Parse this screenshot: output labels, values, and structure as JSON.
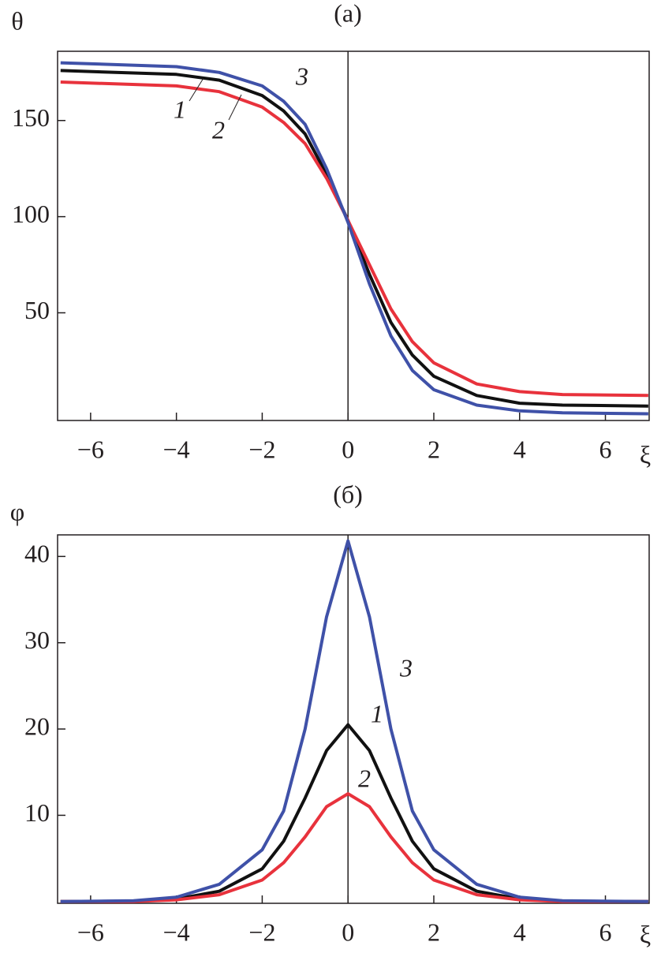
{
  "chart_data": [
    {
      "type": "line",
      "title": "(a)",
      "x_label": "ξ",
      "y_label": "θ",
      "x": [
        -6.7,
        -4,
        -3,
        -2,
        -1.5,
        -1,
        -0.5,
        0,
        0.5,
        1,
        1.5,
        2,
        3,
        4,
        5,
        7
      ],
      "series": [
        {
          "name": "1",
          "color": "#111111",
          "values": [
            176,
            174,
            171,
            163,
            155,
            143,
            122,
            98,
            70,
            45,
            28,
            17,
            7,
            3,
            2,
            1.5
          ]
        },
        {
          "name": "2",
          "color": "#e8323c",
          "values": [
            170,
            168,
            165,
            157,
            149,
            138,
            120,
            98,
            75,
            52,
            35,
            24,
            13,
            9,
            7.5,
            7
          ]
        },
        {
          "name": "3",
          "color": "#3f51a8",
          "values": [
            180,
            178,
            175,
            168,
            160,
            148,
            125,
            97,
            65,
            38,
            20,
            10,
            2,
            -1,
            -2,
            -2.5
          ]
        }
      ],
      "xlim": [
        -6.77,
        7.02
      ],
      "ylim": [
        -6,
        186
      ],
      "xticks": [
        {
          "value": -6,
          "label": "−6"
        },
        {
          "value": -4,
          "label": "−4"
        },
        {
          "value": -2,
          "label": "−2"
        },
        0,
        2,
        4,
        6
      ],
      "yticks": [
        50,
        100,
        150
      ]
    },
    {
      "type": "line",
      "title": "(б)",
      "x_label": "ξ",
      "y_label": "φ",
      "x": [
        -6.7,
        -5,
        -4,
        -3,
        -2,
        -1.5,
        -1,
        -0.5,
        0,
        0.5,
        1,
        1.5,
        2,
        3,
        4,
        5,
        7
      ],
      "series": [
        {
          "name": "1",
          "color": "#111111",
          "values": [
            0,
            0.05,
            0.3,
            1.2,
            3.8,
            7,
            12,
            17.5,
            20.5,
            17.5,
            12,
            7,
            3.8,
            1.2,
            0.3,
            0.05,
            0
          ]
        },
        {
          "name": "2",
          "color": "#e8323c",
          "values": [
            0,
            0,
            0.2,
            0.8,
            2.5,
            4.5,
            7.5,
            11,
            12.5,
            11,
            7.5,
            4.5,
            2.5,
            0.8,
            0.2,
            0,
            0
          ]
        },
        {
          "name": "3",
          "color": "#3f51a8",
          "values": [
            0,
            0.1,
            0.5,
            2,
            6,
            10.5,
            20,
            33,
            41.8,
            33,
            20,
            10.5,
            6,
            2,
            0.5,
            0.1,
            0
          ]
        }
      ],
      "xlim": [
        -6.77,
        7.02
      ],
      "ylim": [
        -0.2,
        42.5
      ],
      "xticks": [
        {
          "value": -6,
          "label": "−6"
        },
        {
          "value": -4,
          "label": "−4"
        },
        {
          "value": -2,
          "label": "−2"
        },
        0,
        2,
        4,
        6
      ],
      "yticks": [
        10,
        20,
        30,
        40
      ]
    }
  ]
}
